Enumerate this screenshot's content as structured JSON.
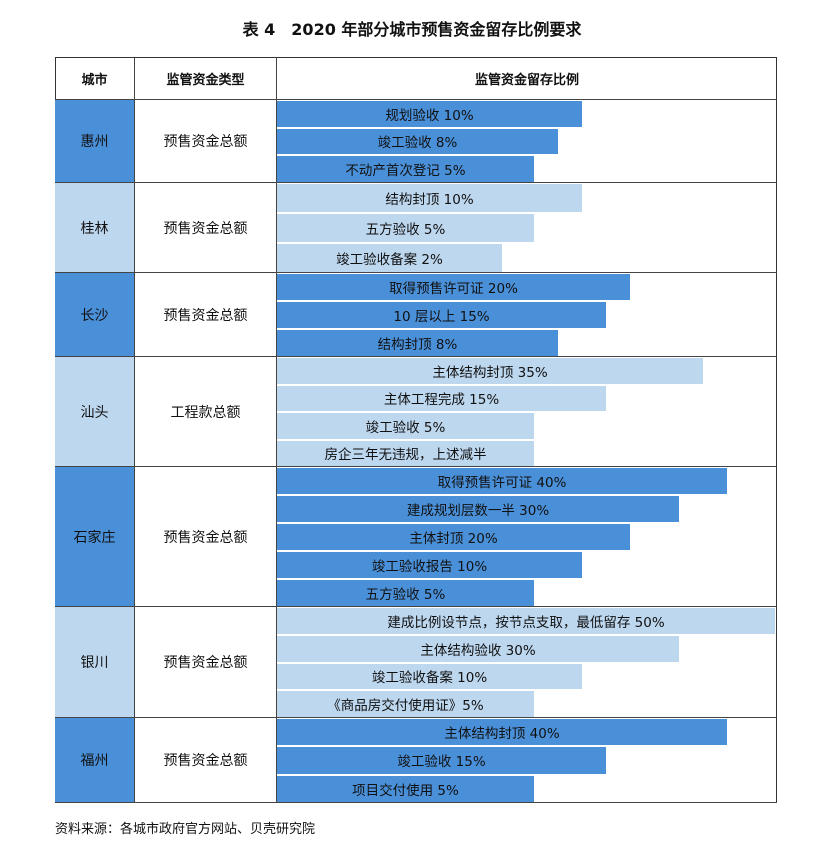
{
  "title": "表 4　2020 年部分城市预售资金留存比例要求",
  "table": {
    "header": [
      "城市",
      "监管资金类型",
      "监管资金留存比例"
    ],
    "rows": [
      {
        "city": "惠州",
        "type": "预售资金总额",
        "items": [
          "规划验收 10%",
          "竣工验收 8%",
          "不动产首次登记 5%"
        ]
      },
      {
        "city": "桂林",
        "type": "预售资金总额",
        "items": [
          "结构封顶 10%",
          "五方验收 5%",
          "竣工验收备案 2%"
        ]
      },
      {
        "city": "长沙",
        "type": "预售资金总额",
        "items": [
          "取得预售许可证 20%",
          "10 层以上 15%",
          "结构封顶 8%"
        ]
      },
      {
        "city": "汕头",
        "type": "工程款总额",
        "items": [
          "主体结构封顶 35%",
          "主体工程完成 15%",
          "竣工验收 5%",
          "房企三年无违规，上述减半"
        ]
      },
      {
        "city": "石家庄",
        "type": "预售资金总额",
        "items": [
          "取得预售许可证 40%",
          "建成规划层数一半 30%",
          "主体封顶 20%",
          "竣工验收报告 10%",
          "五方验收 5%"
        ]
      },
      {
        "city": "银川",
        "type": "预售资金总额",
        "items": [
          "建成比例设节点，按节点支取，最低留存 50%",
          "主体结构验收 30%",
          "竣工验收备案 10%",
          "《商品房交付使用证》5%"
        ]
      },
      {
        "city": "福州",
        "type": "预售资金总额",
        "items": [
          "主体结构封顶 40%",
          "竣工验收 15%",
          "项目交付使用 5%"
        ]
      }
    ]
  },
  "source": "资料来源：各城市政府官方网站、贝壳研究院"
}
